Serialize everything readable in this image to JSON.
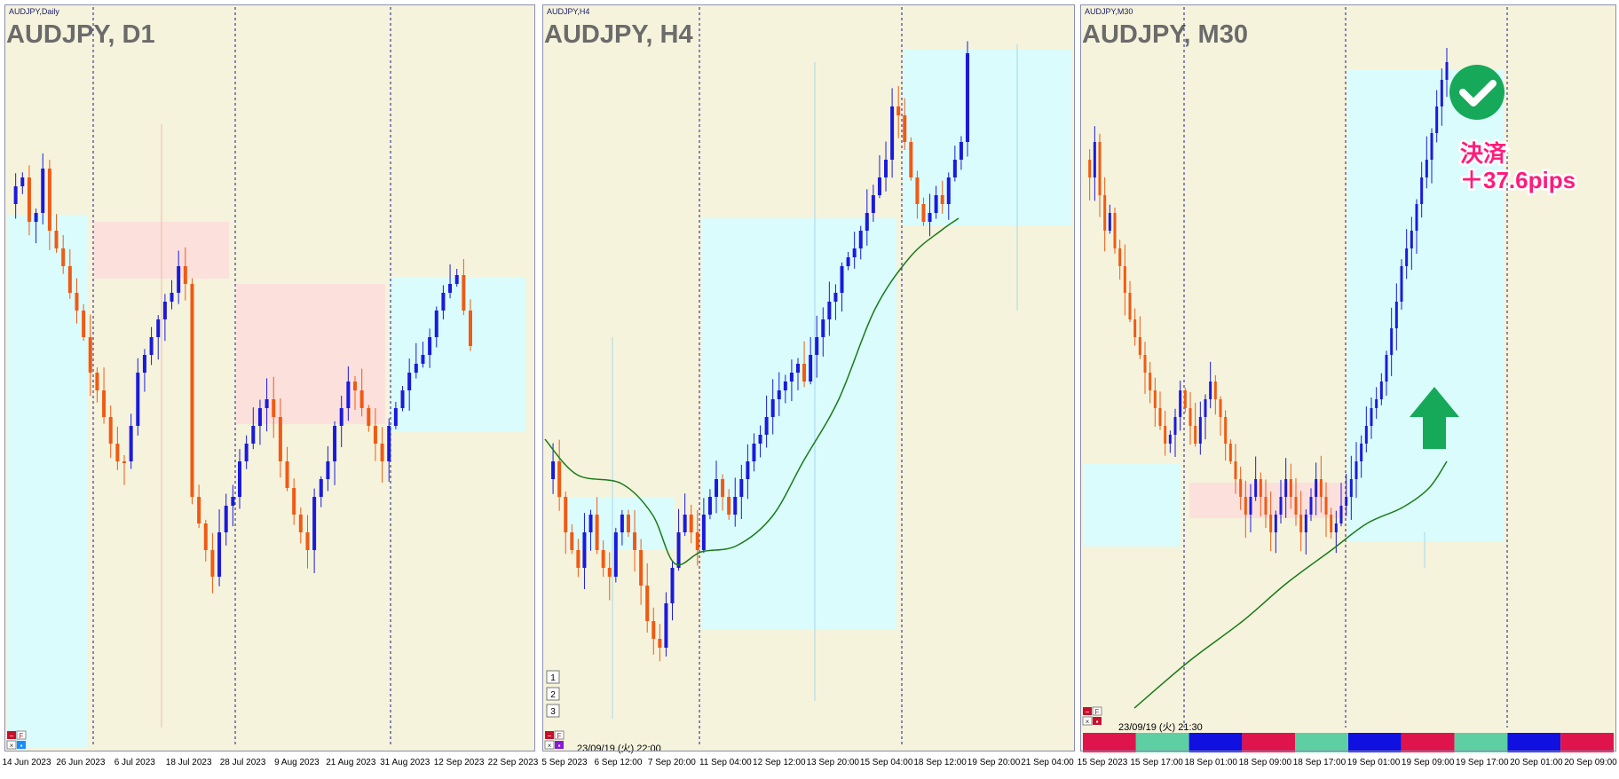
{
  "charts": [
    {
      "small_title": "AUDJPY,Daily",
      "big_title": "AUDJPY, D1",
      "xticks": [
        "14 Jun 2023",
        "26 Jun 2023",
        "6 Jul 2023",
        "18 Jul 2023",
        "28 Jul 2023",
        "9 Aug 2023",
        "21 Aug 2023",
        "31 Aug 2023",
        "12 Sep 2023",
        "22 Sep 2023"
      ],
      "corner_buttons": [
        "−",
        "F",
        "×",
        "▪"
      ]
    },
    {
      "small_title": "AUDJPY,H4",
      "big_title": "AUDJPY, H4",
      "xticks": [
        "5 Sep 2023",
        "6 Sep 12:00",
        "7 Sep 20:00",
        "11 Sep 04:00",
        "12 Sep 12:00",
        "13 Sep 20:00",
        "15 Sep 04:00",
        "18 Sep 12:00",
        "19 Sep 20:00",
        "21 Sep 04:00"
      ],
      "corner_buttons": [
        "−",
        "F",
        "×",
        "▪"
      ],
      "list_buttons": [
        "1",
        "2",
        "3"
      ],
      "timestamp": "23/09/19 (火) 22:00"
    },
    {
      "small_title": "AUDJPY,M30",
      "big_title": "AUDJPY, M30",
      "xticks": [
        "15 Sep 2023",
        "15 Sep 17:00",
        "18 Sep 01:00",
        "18 Sep 09:00",
        "18 Sep 17:00",
        "19 Sep 01:00",
        "19 Sep 09:00",
        "19 Sep 17:00",
        "20 Sep 01:00",
        "20 Sep 09:00"
      ],
      "corner_buttons": [
        "−",
        "F",
        "×",
        "▪"
      ],
      "timestamp": "23/09/19 (火) 21:30",
      "annotation_line1": "決済",
      "annotation_line2": "＋37.6pips",
      "session_colors": [
        "#e0144c",
        "#5ecfa2",
        "#1010e0",
        "#e0144c",
        "#5ecfa2",
        "#1010e0",
        "#e0144c",
        "#5ecfa2",
        "#1010e0",
        "#e0144c"
      ]
    }
  ],
  "colors": {
    "bg": "#f5f3dc",
    "bull": "#1a1adc",
    "bear": "#f05a14",
    "ma": "#1a7a1a",
    "zone_blue": "#dafcfc",
    "zone_pink": "#fce0dc",
    "check": "#16a95a",
    "arrow": "#16a95a",
    "annotation": "#ff1b7a"
  },
  "chart_data": [
    {
      "type": "candlestick",
      "symbol": "AUDJPY",
      "timeframe": "D1",
      "x": [
        "14 Jun 2023",
        "26 Jun 2023",
        "6 Jul 2023",
        "18 Jul 2023",
        "28 Jul 2023",
        "9 Aug 2023",
        "21 Aug 2023",
        "31 Aug 2023",
        "12 Sep 2023",
        "22 Sep 2023"
      ],
      "grid": true
    },
    {
      "type": "candlestick",
      "symbol": "AUDJPY",
      "timeframe": "H4",
      "x": [
        "5 Sep 2023",
        "6 Sep 12:00",
        "7 Sep 20:00",
        "11 Sep 04:00",
        "12 Sep 12:00",
        "13 Sep 20:00",
        "15 Sep 04:00",
        "18 Sep 12:00",
        "19 Sep 20:00",
        "21 Sep 04:00"
      ],
      "grid": true,
      "moving_average": true
    },
    {
      "type": "candlestick",
      "symbol": "AUDJPY",
      "timeframe": "M30",
      "x": [
        "15 Sep 2023",
        "15 Sep 17:00",
        "18 Sep 01:00",
        "18 Sep 09:00",
        "18 Sep 17:00",
        "19 Sep 01:00",
        "19 Sep 09:00",
        "19 Sep 17:00",
        "20 Sep 01:00",
        "20 Sep 09:00"
      ],
      "grid": true,
      "moving_average": true,
      "result_pips": 37.6
    }
  ]
}
